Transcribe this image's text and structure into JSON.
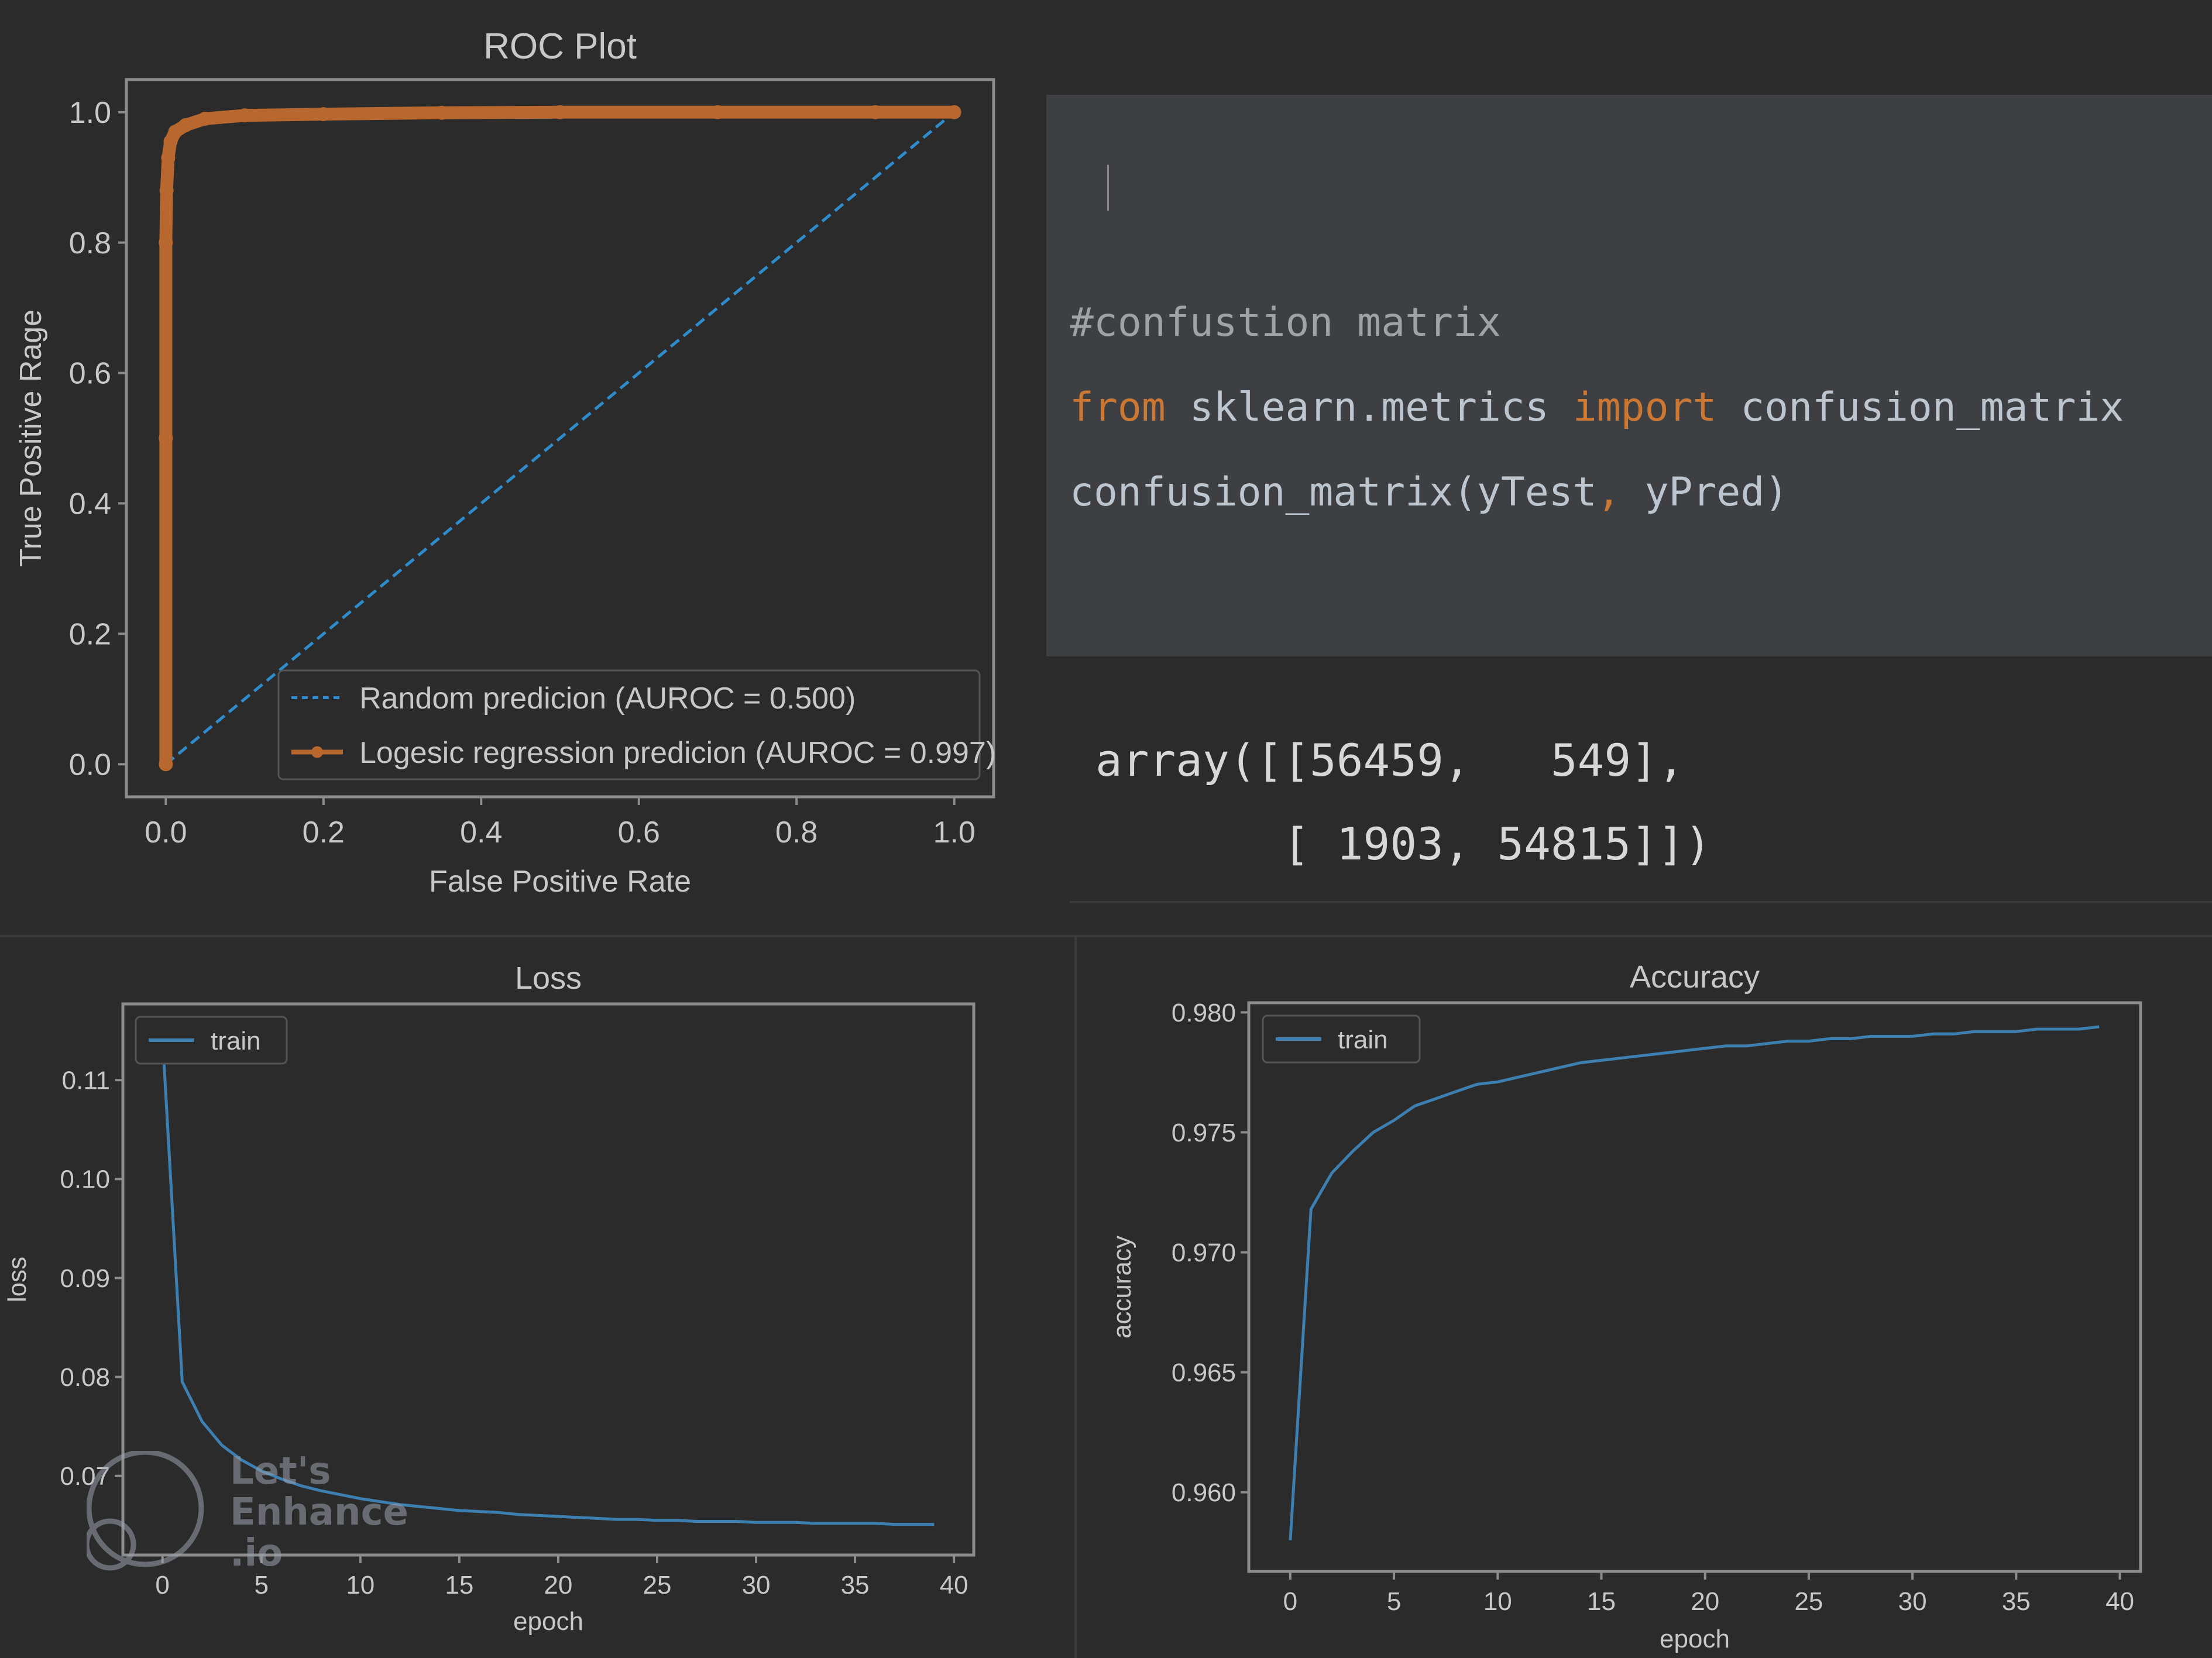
{
  "code_cell": {
    "comment": "#confustion matrix",
    "line2_from": "from",
    "line2_module": " sklearn.metrics ",
    "line2_import": "import",
    "line2_name": " confusion_matrix",
    "line3_call": "confusion_matrix(yTest",
    "line3_comma": ",",
    "line3_args": " yPred)"
  },
  "output": {
    "line1": "array([[56459,   549],",
    "line2": "       [ 1903, 54815]])"
  },
  "watermark": {
    "line1": "Let's",
    "line2": "Enhance",
    "line3": ".io"
  },
  "colors": {
    "background": "#2b2b2b",
    "axes_face": "#2b2b2b",
    "axes_edge": "#8c8c8c",
    "text": "#c8c8c8",
    "series_blue": "#3d7fb0",
    "series_orange": "#b8672e",
    "dashed_blue": "#2e8ccc",
    "keyword_orange": "#cc7832"
  },
  "chart_data": [
    {
      "type": "line",
      "title": "ROC Plot",
      "xlabel": "False Positive Rate",
      "ylabel": "True Positive Rage",
      "xlim": [
        -0.05,
        1.05
      ],
      "ylim": [
        -0.05,
        1.05
      ],
      "xticks": [
        "0.0",
        "0.2",
        "0.4",
        "0.6",
        "0.8",
        "1.0"
      ],
      "yticks": [
        "0.0",
        "0.2",
        "0.4",
        "0.6",
        "0.8",
        "1.0"
      ],
      "legend": "lower right",
      "series": [
        {
          "name": "Random predicion (AUROC = 0.500)",
          "style": "dashed",
          "color": "#2e8ccc",
          "x": [
            0.0,
            1.0
          ],
          "y": [
            0.0,
            1.0
          ]
        },
        {
          "name": "Logesic regression predicion (AUROC = 0.997)",
          "style": "solid-markers",
          "color": "#b8672e",
          "x": [
            0.0,
            0.0,
            0.0,
            0.001,
            0.003,
            0.006,
            0.012,
            0.025,
            0.05,
            0.1,
            0.2,
            0.35,
            0.5,
            0.7,
            0.9,
            1.0
          ],
          "y": [
            0.0,
            0.5,
            0.8,
            0.88,
            0.93,
            0.955,
            0.97,
            0.98,
            0.99,
            0.995,
            0.997,
            0.999,
            1.0,
            1.0,
            1.0,
            1.0
          ]
        }
      ]
    },
    {
      "type": "line",
      "title": "Loss",
      "xlabel": "epoch",
      "ylabel": "loss",
      "xlim": [
        -2,
        41
      ],
      "ylim": [
        0.062,
        0.1177
      ],
      "xticks": [
        "0",
        "5",
        "10",
        "15",
        "20",
        "25",
        "30",
        "35",
        "40"
      ],
      "yticks": [
        "0.07",
        "0.08",
        "0.09",
        "0.10",
        "0.11"
      ],
      "legend": "upper left",
      "series": [
        {
          "name": "train",
          "color": "#3d7fb0",
          "x": [
            0,
            1,
            2,
            3,
            4,
            5,
            6,
            7,
            8,
            9,
            10,
            11,
            12,
            13,
            14,
            15,
            16,
            17,
            18,
            19,
            20,
            21,
            22,
            23,
            24,
            25,
            26,
            27,
            28,
            29,
            30,
            31,
            32,
            33,
            34,
            35,
            36,
            37,
            38,
            39
          ],
          "y": [
            0.1145,
            0.0795,
            0.0755,
            0.0731,
            0.0716,
            0.0705,
            0.0697,
            0.069,
            0.0685,
            0.0681,
            0.0677,
            0.0674,
            0.0671,
            0.0669,
            0.0667,
            0.0665,
            0.0664,
            0.0663,
            0.0661,
            0.066,
            0.0659,
            0.0658,
            0.0657,
            0.0656,
            0.0656,
            0.0655,
            0.0655,
            0.0654,
            0.0654,
            0.0654,
            0.0653,
            0.0653,
            0.0653,
            0.0652,
            0.0652,
            0.0652,
            0.0652,
            0.0651,
            0.0651,
            0.0651
          ]
        }
      ]
    },
    {
      "type": "line",
      "title": "Accuracy",
      "xlabel": "epoch",
      "ylabel": "accuracy",
      "xlim": [
        -2,
        41
      ],
      "ylim": [
        0.9567,
        0.9804
      ],
      "xticks": [
        "0",
        "5",
        "10",
        "15",
        "20",
        "25",
        "30",
        "35",
        "40"
      ],
      "yticks": [
        "0.960",
        "0.965",
        "0.970",
        "0.975",
        "0.980"
      ],
      "legend": "upper left",
      "series": [
        {
          "name": "train",
          "color": "#3d7fb0",
          "x": [
            0,
            1,
            2,
            3,
            4,
            5,
            6,
            7,
            8,
            9,
            10,
            11,
            12,
            13,
            14,
            15,
            16,
            17,
            18,
            19,
            20,
            21,
            22,
            23,
            24,
            25,
            26,
            27,
            28,
            29,
            30,
            31,
            32,
            33,
            34,
            35,
            36,
            37,
            38,
            39
          ],
          "y": [
            0.958,
            0.9718,
            0.9733,
            0.9742,
            0.975,
            0.9755,
            0.9761,
            0.9764,
            0.9767,
            0.977,
            0.9771,
            0.9773,
            0.9775,
            0.9777,
            0.9779,
            0.978,
            0.9781,
            0.9782,
            0.9783,
            0.9784,
            0.9785,
            0.9786,
            0.9786,
            0.9787,
            0.9788,
            0.9788,
            0.9789,
            0.9789,
            0.979,
            0.979,
            0.979,
            0.9791,
            0.9791,
            0.9792,
            0.9792,
            0.9792,
            0.9793,
            0.9793,
            0.9793,
            0.9794
          ]
        }
      ]
    }
  ]
}
